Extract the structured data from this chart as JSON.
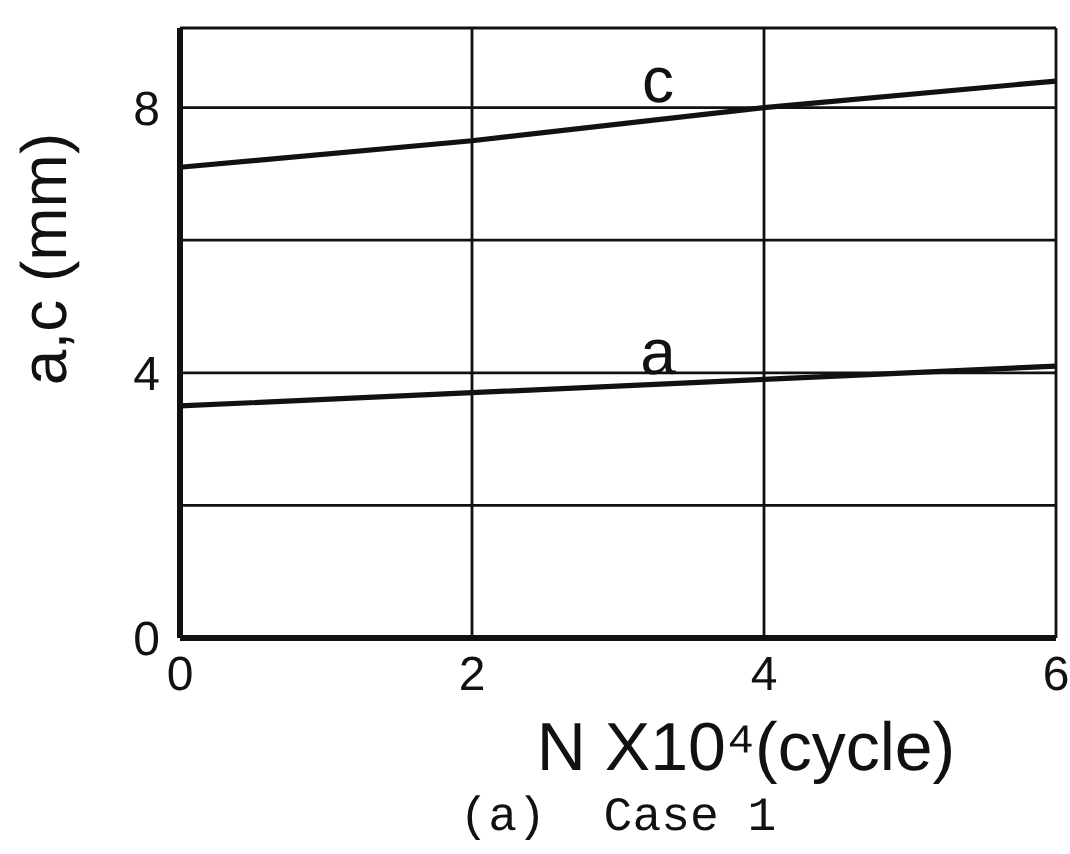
{
  "chart_data": {
    "type": "line",
    "xlabel": "N X10⁴(cycle)",
    "ylabel": "a,c (mm)",
    "annotations": [
      "(a)  Case 1"
    ],
    "x": [
      0,
      2,
      4,
      6
    ],
    "series": [
      {
        "name": "c",
        "color": "#111111",
        "values": [
          7.1,
          7.5,
          8.0,
          8.4
        ]
      },
      {
        "name": "a",
        "color": "#111111",
        "values": [
          3.5,
          3.7,
          3.9,
          4.1
        ]
      }
    ],
    "xlim": [
      0,
      6
    ],
    "xticks": [
      0,
      2,
      4,
      6
    ],
    "ylim": [
      0,
      9.2
    ],
    "yticks": [
      0,
      {
        "value": 2,
        "label": null
      },
      4,
      {
        "value": 6,
        "label": null
      },
      8
    ],
    "grid": true,
    "legend": false,
    "marker": "none",
    "line_style": "solid"
  }
}
